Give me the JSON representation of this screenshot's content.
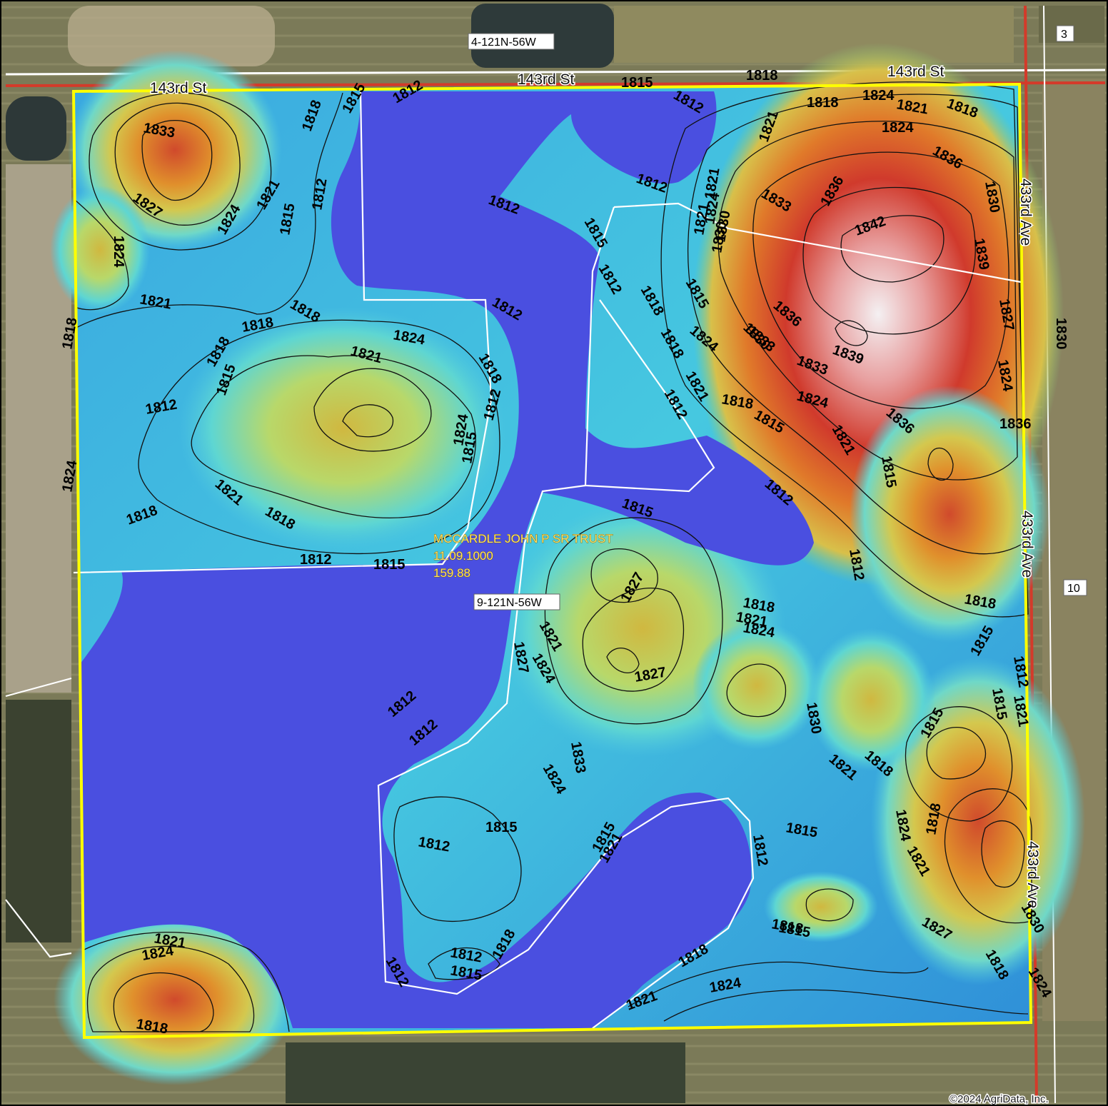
{
  "map": {
    "section_labels": [
      "4-121N-56W",
      "9-121N-56W"
    ],
    "owner": {
      "name": "MCCARDLE JOHN P SR TRUST",
      "parcel_id": "11.09.1000",
      "acres": "159.88"
    },
    "roads": {
      "north": [
        "143rd St",
        "143rd St",
        "143rd St"
      ],
      "east": [
        "433rd Ave",
        "433rd Ave",
        "433rd Ave"
      ]
    },
    "adjacent_section_numbers": [
      "3",
      "10"
    ],
    "copyright": "©2024 AgriData, Inc.",
    "contour_labels": [
      "1833",
      "1827",
      "1824",
      "1824",
      "1821",
      "1815",
      "1812",
      "1818",
      "1815",
      "1812",
      "1815",
      "1812",
      "1818",
      "1812",
      "1821",
      "1818",
      "1824",
      "1821",
      "1818",
      "1824",
      "1821",
      "1830",
      "1836",
      "1836",
      "1833",
      "1842",
      "1830",
      "1821",
      "1824",
      "1830",
      "1839",
      "1812",
      "1815",
      "1818",
      "1812",
      "1818",
      "1815",
      "1821",
      "1827",
      "1824",
      "1821",
      "1818",
      "1818",
      "1818",
      "1815",
      "1812",
      "1818",
      "1824",
      "1821",
      "1812",
      "1818",
      "1824",
      "1812",
      "1815",
      "1821",
      "1818",
      "1812",
      "1815",
      "1818",
      "1824",
      "1830",
      "1836",
      "1833",
      "1830",
      "1824",
      "1836",
      "1839",
      "1833",
      "1836",
      "1812",
      "1815",
      "1818",
      "1824",
      "1821",
      "1815",
      "1812",
      "1812",
      "1815",
      "1818",
      "1821",
      "1824",
      "1827",
      "1818",
      "1815",
      "1812",
      "1815",
      "1815",
      "1818",
      "1821",
      "1821",
      "1824",
      "1827",
      "1824",
      "1833",
      "1827",
      "1830",
      "1821",
      "1818",
      "1824",
      "1821",
      "1827",
      "1818",
      "1815",
      "1812",
      "1818",
      "1815",
      "1812",
      "1812",
      "1815",
      "1818",
      "1812",
      "1812",
      "1815",
      "1818",
      "1821",
      "1824",
      "1821",
      "1824",
      "1818",
      "1824",
      "1830",
      "1815",
      "1812",
      "1821"
    ],
    "colors": {
      "water": "#4a4fe0",
      "low": "#1f6fd8",
      "mid_low": "#3fd0df",
      "mid": "#c8d25a",
      "high": "#d0402f",
      "peak": "#f2f2f2",
      "boundary": "#ffff00",
      "road": "#d43a2a"
    },
    "legend_present": false
  }
}
